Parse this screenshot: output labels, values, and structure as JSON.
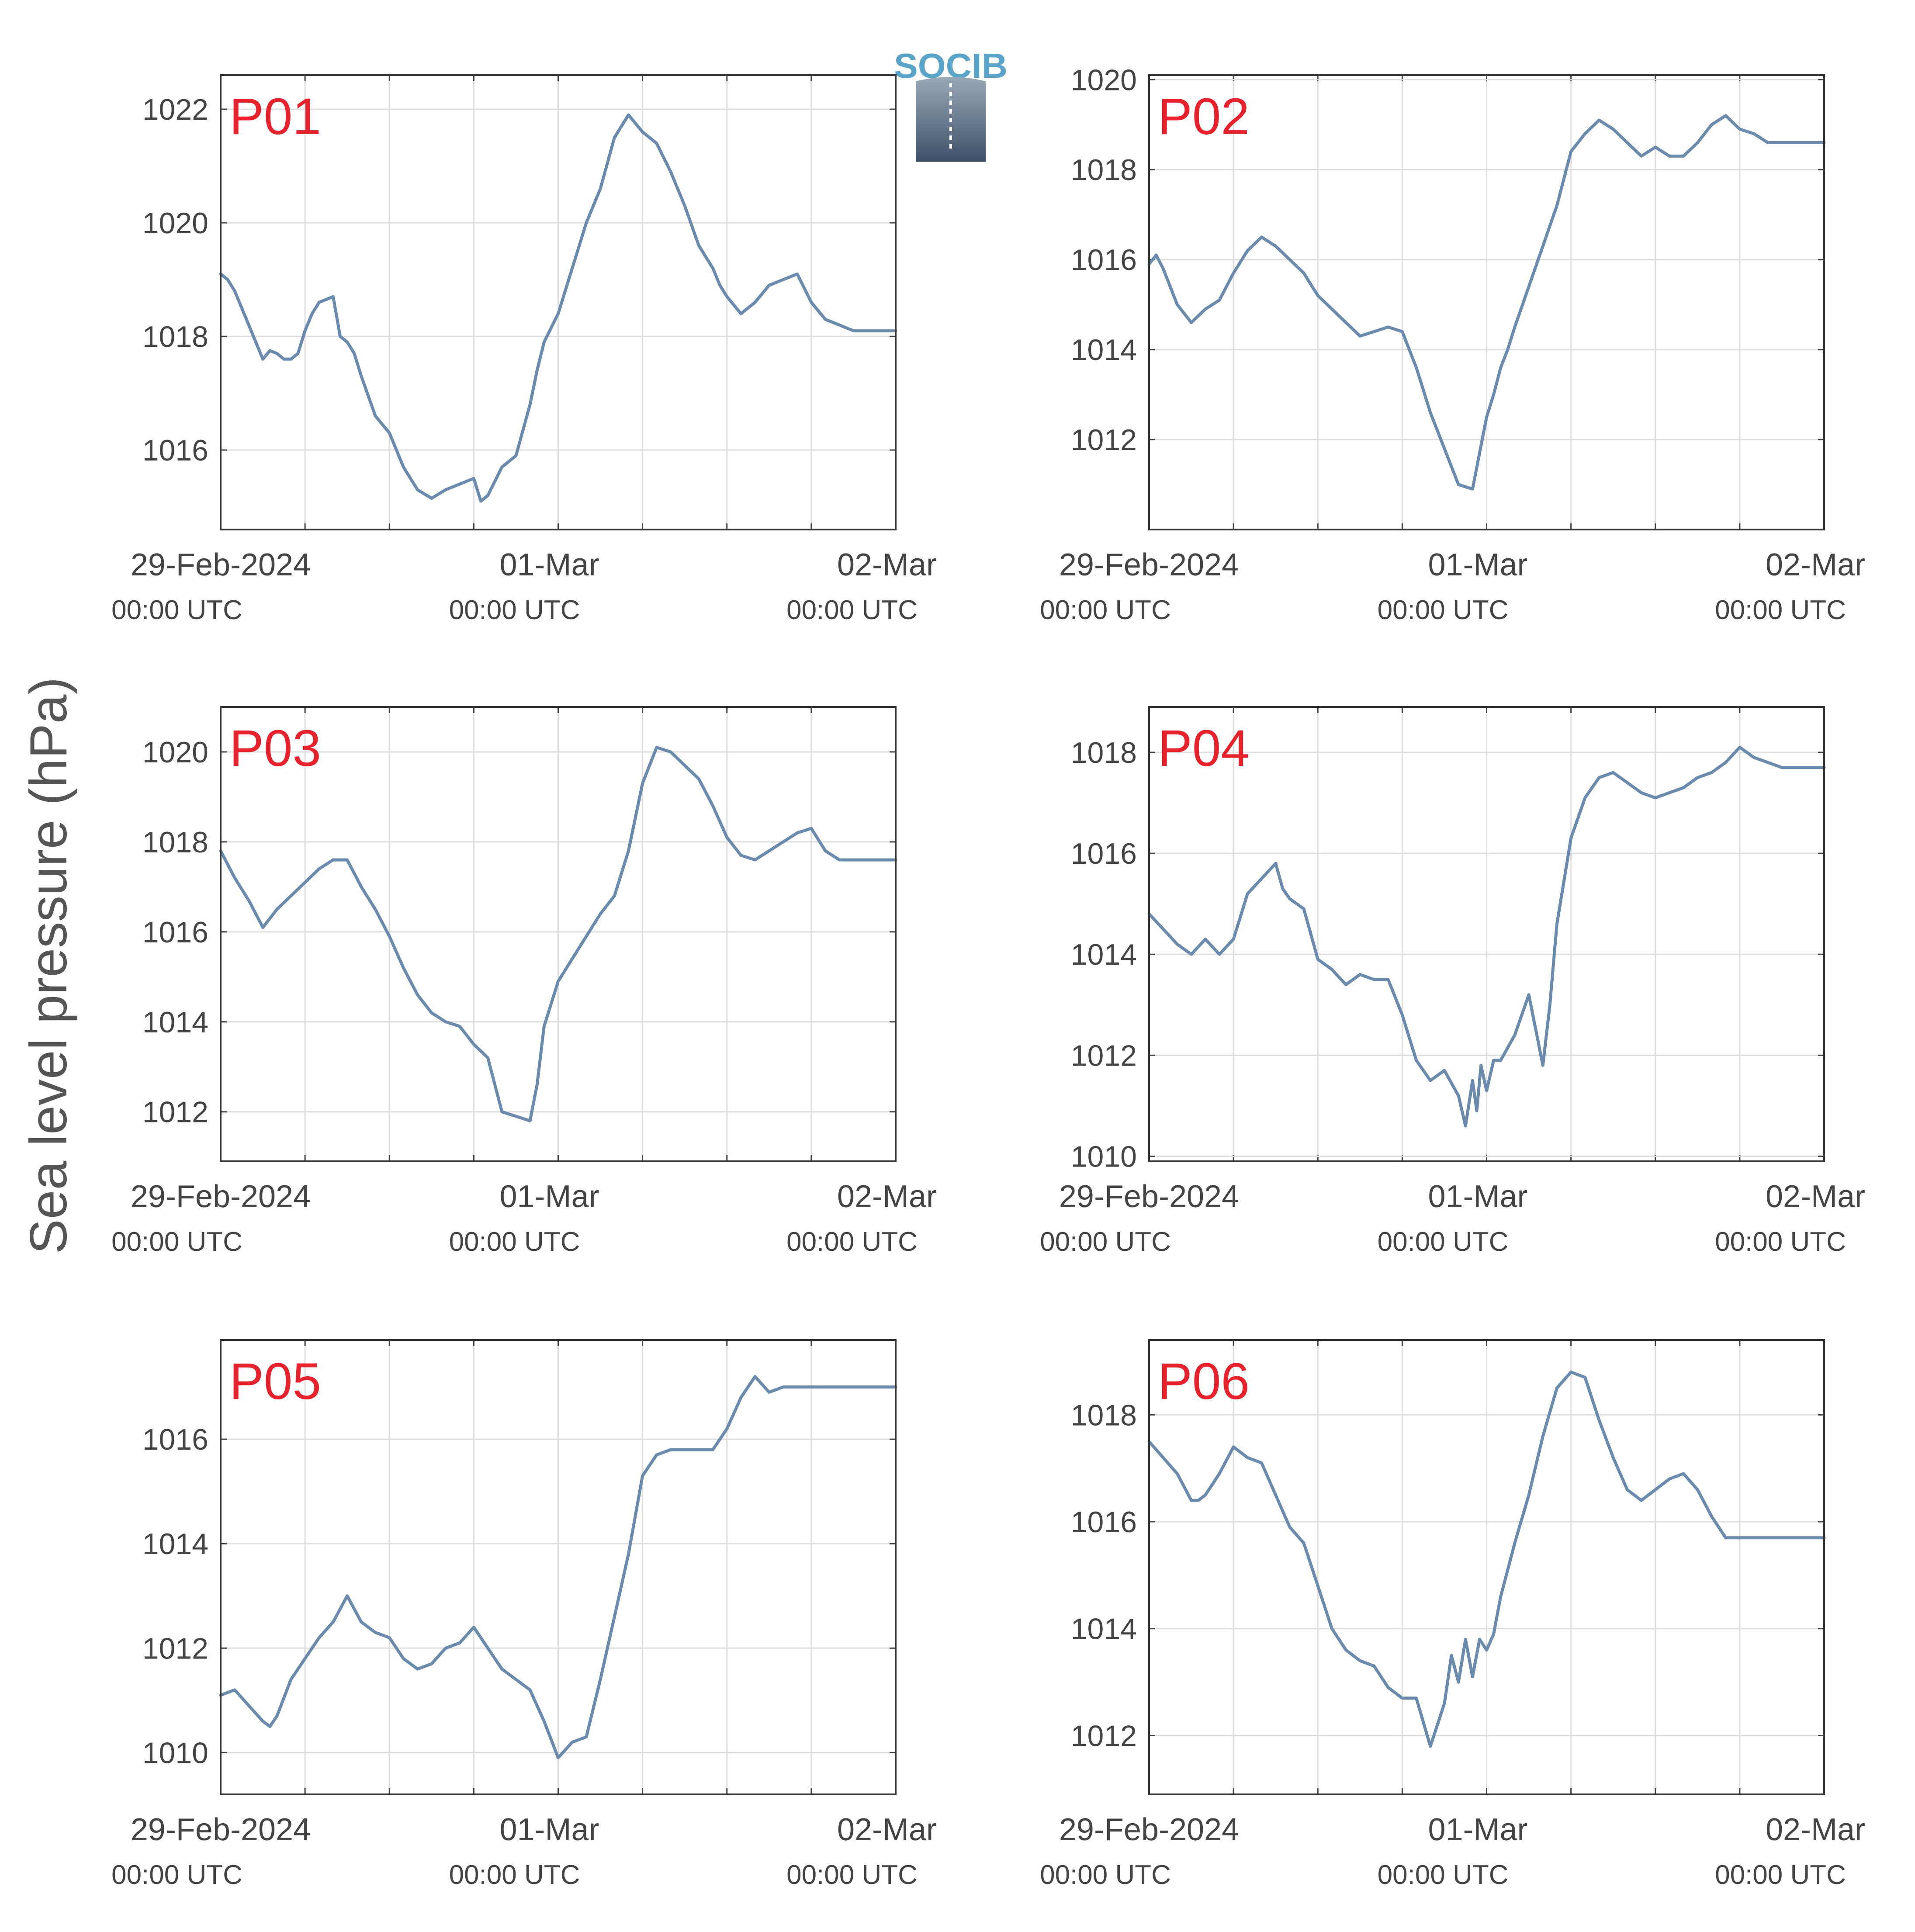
{
  "ylabel": "Sea level pressure (hPa)",
  "logo": {
    "text": "SOCIB",
    "color": "#5aa3c9"
  },
  "line_color": "#6a8bad",
  "title_color": "#e8222d",
  "x_ticks": [
    {
      "date": "29-Feb-2024",
      "time": "00:00 UTC"
    },
    {
      "date": "01-Mar",
      "time": "00:00 UTC"
    },
    {
      "date": "02-Mar",
      "time": "00:00 UTC"
    }
  ],
  "chart_data": [
    {
      "type": "line",
      "title": "P01",
      "ylabel": "Sea level pressure (hPa)",
      "xlim": [
        0,
        48
      ],
      "ylim": [
        1014.6,
        1022.6
      ],
      "yticks": [
        1016,
        1018,
        1020,
        1022
      ],
      "grid": true,
      "x": [
        0,
        0.5,
        1,
        1.5,
        2,
        2.5,
        3,
        3.5,
        4,
        4.5,
        5,
        5.5,
        6,
        6.5,
        7,
        7.5,
        8,
        8.5,
        9,
        9.5,
        10,
        11,
        12,
        13,
        14,
        15,
        16,
        17,
        18,
        18.5,
        19,
        20,
        21,
        22,
        22.5,
        23,
        24,
        25,
        26,
        27,
        28,
        29,
        30,
        31,
        32,
        33,
        34,
        35,
        35.5,
        36,
        37,
        38,
        39,
        40,
        41,
        42,
        43,
        44,
        45,
        46,
        47,
        48
      ],
      "y": [
        1019.1,
        1019.0,
        1018.8,
        1018.5,
        1018.2,
        1017.9,
        1017.6,
        1017.75,
        1017.7,
        1017.6,
        1017.6,
        1017.7,
        1018.1,
        1018.4,
        1018.6,
        1018.65,
        1018.7,
        1018.0,
        1017.9,
        1017.7,
        1017.3,
        1016.6,
        1016.3,
        1015.7,
        1015.3,
        1015.15,
        1015.3,
        1015.4,
        1015.5,
        1015.1,
        1015.2,
        1015.7,
        1015.9,
        1016.8,
        1017.4,
        1017.9,
        1018.4,
        1019.2,
        1020.0,
        1020.6,
        1021.5,
        1021.9,
        1021.6,
        1021.4,
        1020.9,
        1020.3,
        1019.6,
        1019.2,
        1018.9,
        1018.7,
        1018.4,
        1018.6,
        1018.9,
        1019.0,
        1019.1,
        1018.6,
        1018.3,
        1018.2,
        1018.1,
        1018.1,
        1018.1,
        1018.1
      ]
    },
    {
      "type": "line",
      "title": "P02",
      "ylabel": "Sea level pressure (hPa)",
      "xlim": [
        0,
        48
      ],
      "ylim": [
        1010.0,
        1020.1
      ],
      "yticks": [
        1012,
        1014,
        1016,
        1018,
        1020
      ],
      "grid": true,
      "x": [
        0,
        0.5,
        1,
        2,
        3,
        4,
        5,
        6,
        7,
        8,
        9,
        10,
        11,
        12,
        13,
        14,
        15,
        16,
        17,
        18,
        19,
        20,
        21,
        22,
        23,
        24,
        24.5,
        25,
        25.5,
        26,
        27,
        28,
        29,
        30,
        31,
        32,
        33,
        34,
        35,
        36,
        37,
        38,
        39,
        40,
        41,
        42,
        43,
        44,
        45,
        46,
        47,
        48
      ],
      "y": [
        1015.9,
        1016.1,
        1015.8,
        1015.0,
        1014.6,
        1014.9,
        1015.1,
        1015.7,
        1016.2,
        1016.5,
        1016.3,
        1016.0,
        1015.7,
        1015.2,
        1014.9,
        1014.6,
        1014.3,
        1014.4,
        1014.5,
        1014.4,
        1013.6,
        1012.6,
        1011.8,
        1011.0,
        1010.9,
        1012.5,
        1013.0,
        1013.6,
        1014.0,
        1014.5,
        1015.4,
        1016.3,
        1017.2,
        1018.4,
        1018.8,
        1019.1,
        1018.9,
        1018.6,
        1018.3,
        1018.5,
        1018.3,
        1018.3,
        1018.6,
        1019.0,
        1019.2,
        1018.9,
        1018.8,
        1018.6,
        1018.6,
        1018.6,
        1018.6,
        1018.6
      ]
    },
    {
      "type": "line",
      "title": "P03",
      "ylabel": "Sea level pressure (hPa)",
      "xlim": [
        0,
        48
      ],
      "ylim": [
        1010.9,
        1021.0
      ],
      "yticks": [
        1012,
        1014,
        1016,
        1018,
        1020
      ],
      "grid": true,
      "x": [
        0,
        1,
        2,
        3,
        3.5,
        4,
        5,
        6,
        7,
        8,
        9,
        10,
        11,
        12,
        13,
        14,
        15,
        16,
        17,
        18,
        19,
        20,
        21,
        22,
        22.5,
        23,
        24,
        25,
        26,
        27,
        28,
        29,
        30,
        31,
        32,
        33,
        34,
        35,
        36,
        37,
        38,
        39,
        40,
        41,
        42,
        43,
        44,
        45,
        46,
        47,
        48
      ],
      "y": [
        1017.8,
        1017.2,
        1016.7,
        1016.1,
        1016.3,
        1016.5,
        1016.8,
        1017.1,
        1017.4,
        1017.6,
        1017.6,
        1017.0,
        1016.5,
        1015.9,
        1015.2,
        1014.6,
        1014.2,
        1014.0,
        1013.9,
        1013.5,
        1013.2,
        1012.0,
        1011.9,
        1011.8,
        1012.6,
        1013.9,
        1014.9,
        1015.4,
        1015.9,
        1016.4,
        1016.8,
        1017.8,
        1019.3,
        1020.1,
        1020.0,
        1019.7,
        1019.4,
        1018.8,
        1018.1,
        1017.7,
        1017.6,
        1017.8,
        1018.0,
        1018.2,
        1018.3,
        1017.8,
        1017.6,
        1017.6,
        1017.6,
        1017.6,
        1017.6
      ]
    },
    {
      "type": "line",
      "title": "P04",
      "ylabel": "Sea level pressure (hPa)",
      "xlim": [
        0,
        48
      ],
      "ylim": [
        1009.9,
        1018.9
      ],
      "yticks": [
        1010,
        1012,
        1014,
        1016,
        1018
      ],
      "grid": true,
      "x": [
        0,
        1,
        2,
        3,
        4,
        5,
        6,
        7,
        8,
        9,
        9.5,
        10,
        11,
        12,
        13,
        14,
        15,
        16,
        17,
        18,
        19,
        20,
        21,
        22,
        22.5,
        23,
        23.3,
        23.6,
        24,
        24.5,
        25,
        26,
        27,
        28,
        28.5,
        29,
        30,
        31,
        32,
        33,
        34,
        35,
        36,
        37,
        38,
        39,
        40,
        41,
        42,
        43,
        44,
        45,
        46,
        47,
        48
      ],
      "y": [
        1014.8,
        1014.5,
        1014.2,
        1014.0,
        1014.3,
        1014.0,
        1014.3,
        1015.2,
        1015.5,
        1015.8,
        1015.3,
        1015.1,
        1014.9,
        1013.9,
        1013.7,
        1013.4,
        1013.6,
        1013.5,
        1013.5,
        1012.8,
        1011.9,
        1011.5,
        1011.7,
        1011.2,
        1010.6,
        1011.5,
        1010.9,
        1011.8,
        1011.3,
        1011.9,
        1011.9,
        1012.4,
        1013.2,
        1011.8,
        1013.0,
        1014.6,
        1016.3,
        1017.1,
        1017.5,
        1017.6,
        1017.4,
        1017.2,
        1017.1,
        1017.2,
        1017.3,
        1017.5,
        1017.6,
        1017.8,
        1018.1,
        1017.9,
        1017.8,
        1017.7,
        1017.7,
        1017.7,
        1017.7
      ]
    },
    {
      "type": "line",
      "title": "P05",
      "ylabel": "Sea level pressure (hPa)",
      "xlim": [
        0,
        48
      ],
      "ylim": [
        1009.2,
        1017.9
      ],
      "yticks": [
        1010,
        1012,
        1014,
        1016
      ],
      "grid": true,
      "x": [
        0,
        1,
        2,
        3,
        3.5,
        4,
        5,
        6,
        7,
        8,
        9,
        10,
        11,
        12,
        13,
        14,
        15,
        16,
        17,
        18,
        19,
        20,
        21,
        22,
        23,
        24,
        25,
        26,
        27,
        28,
        29,
        30,
        31,
        32,
        33,
        34,
        35,
        36,
        37,
        38,
        39,
        40,
        41,
        42,
        43,
        44,
        45,
        46,
        47,
        48
      ],
      "y": [
        1011.1,
        1011.2,
        1010.9,
        1010.6,
        1010.5,
        1010.7,
        1011.4,
        1011.8,
        1012.2,
        1012.5,
        1013.0,
        1012.5,
        1012.3,
        1012.2,
        1011.8,
        1011.6,
        1011.7,
        1012.0,
        1012.1,
        1012.4,
        1012.0,
        1011.6,
        1011.4,
        1011.2,
        1010.6,
        1009.9,
        1010.2,
        1010.3,
        1011.4,
        1012.6,
        1013.8,
        1015.3,
        1015.7,
        1015.8,
        1015.8,
        1015.8,
        1015.8,
        1016.2,
        1016.8,
        1017.2,
        1016.9,
        1017.0,
        1017.0,
        1017.0,
        1017.0,
        1017.0,
        1017.0,
        1017.0,
        1017.0,
        1017.0
      ]
    },
    {
      "type": "line",
      "title": "P06",
      "ylabel": "Sea level pressure (hPa)",
      "xlim": [
        0,
        48
      ],
      "ylim": [
        1010.9,
        1019.4
      ],
      "yticks": [
        1012,
        1014,
        1016,
        1018
      ],
      "grid": true,
      "x": [
        0,
        1,
        2,
        3,
        3.5,
        4,
        5,
        6,
        7,
        8,
        9,
        10,
        11,
        12,
        13,
        14,
        15,
        16,
        17,
        18,
        19,
        20,
        21,
        21.5,
        22,
        22.5,
        23,
        23.5,
        24,
        24.5,
        25,
        26,
        27,
        28,
        29,
        30,
        31,
        32,
        33,
        34,
        35,
        36,
        37,
        38,
        39,
        40,
        41,
        42,
        43,
        44,
        45,
        46,
        47,
        48
      ],
      "y": [
        1017.5,
        1017.2,
        1016.9,
        1016.4,
        1016.4,
        1016.5,
        1016.9,
        1017.4,
        1017.2,
        1017.1,
        1016.5,
        1015.9,
        1015.6,
        1014.8,
        1014.0,
        1013.6,
        1013.4,
        1013.3,
        1012.9,
        1012.7,
        1012.7,
        1011.8,
        1012.6,
        1013.5,
        1013.0,
        1013.8,
        1013.1,
        1013.8,
        1013.6,
        1013.9,
        1014.6,
        1015.6,
        1016.5,
        1017.6,
        1018.5,
        1018.8,
        1018.7,
        1017.9,
        1017.2,
        1016.6,
        1016.4,
        1016.6,
        1016.8,
        1016.9,
        1016.6,
        1016.1,
        1015.7,
        1015.7,
        1015.7,
        1015.7,
        1015.7,
        1015.7,
        1015.7,
        1015.7
      ]
    }
  ]
}
